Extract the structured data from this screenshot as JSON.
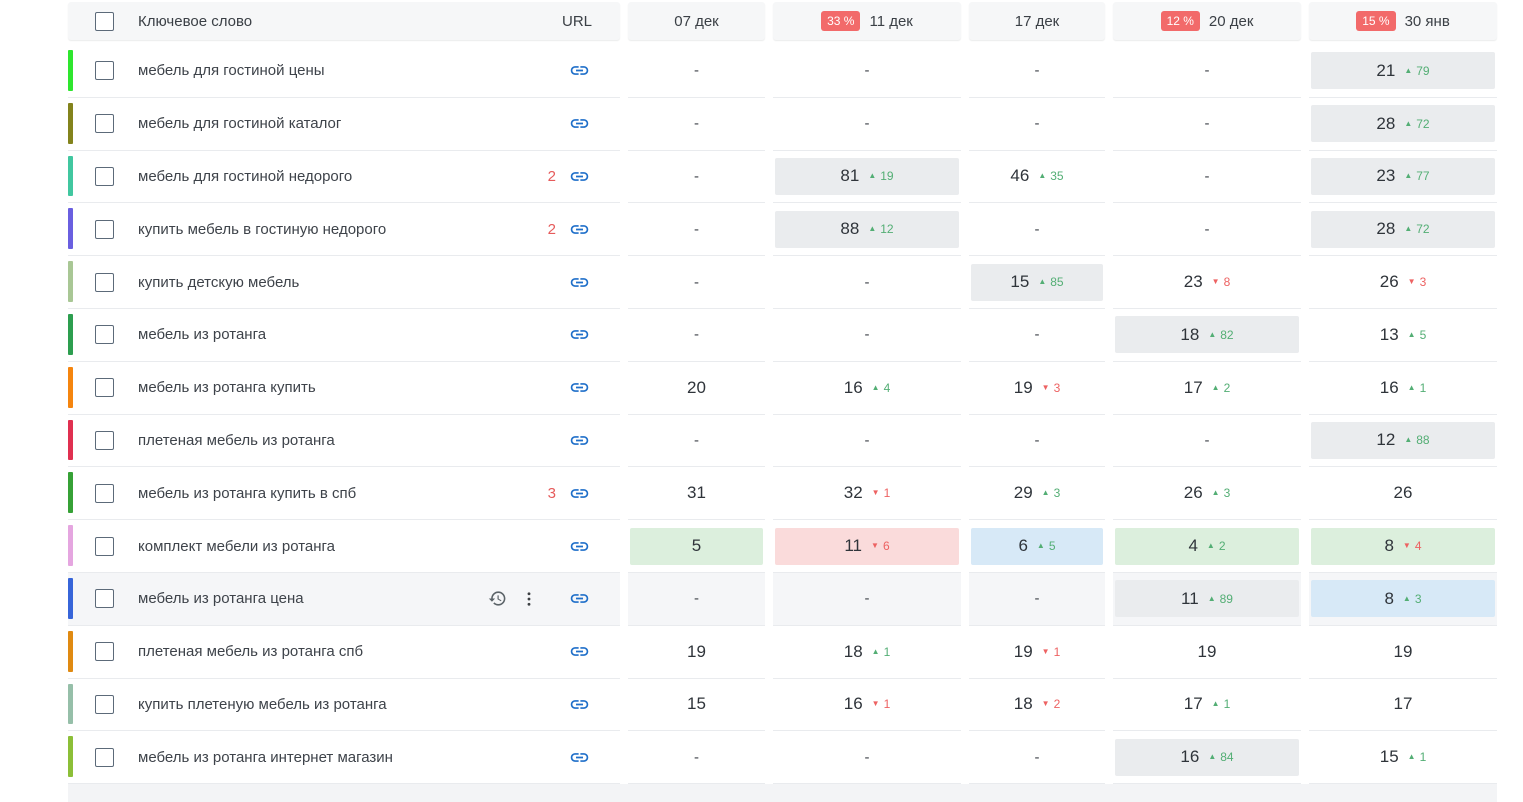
{
  "colors": {
    "badge_bg": "#f26a6a",
    "change_up": "#53ae74",
    "change_down": "#ed6262",
    "cell_gray": "#eaecee",
    "cell_green": "#dcefdd",
    "cell_red": "#fadbdb",
    "cell_blue": "#d7e9f7",
    "link_icon": "#1f6fc9",
    "highlight_row": "#f5f6f8"
  },
  "header": {
    "keyword_label": "Ключевое слово",
    "url_label": "URL",
    "columns": [
      {
        "label": "07 дек",
        "badge": ""
      },
      {
        "label": "11 дек",
        "badge": "33 %"
      },
      {
        "label": "17 дек",
        "badge": ""
      },
      {
        "label": "20 дек",
        "badge": "12 %"
      },
      {
        "label": "30 янв",
        "badge": "15 %"
      }
    ]
  },
  "table": {
    "rows": [
      {
        "keyword": "мебель для гостиной цены",
        "stripe": "#2ee62e",
        "count": "",
        "extra_icons": false,
        "highlighted": false,
        "cells": [
          {
            "value": "-"
          },
          {
            "value": "-"
          },
          {
            "value": "-"
          },
          {
            "value": "-"
          },
          {
            "value": "21",
            "dir": "up",
            "amount": "79",
            "bg": "gray"
          }
        ]
      },
      {
        "keyword": "мебель для гостиной каталог",
        "stripe": "#83831c",
        "count": "",
        "extra_icons": false,
        "highlighted": false,
        "cells": [
          {
            "value": "-"
          },
          {
            "value": "-"
          },
          {
            "value": "-"
          },
          {
            "value": "-"
          },
          {
            "value": "28",
            "dir": "up",
            "amount": "72",
            "bg": "gray"
          }
        ]
      },
      {
        "keyword": "мебель для гостиной недорого",
        "stripe": "#41c7a0",
        "count": "2",
        "extra_icons": false,
        "highlighted": false,
        "cells": [
          {
            "value": "-"
          },
          {
            "value": "81",
            "dir": "up",
            "amount": "19",
            "bg": "gray"
          },
          {
            "value": "46",
            "dir": "up",
            "amount": "35"
          },
          {
            "value": "-"
          },
          {
            "value": "23",
            "dir": "up",
            "amount": "77",
            "bg": "gray"
          }
        ]
      },
      {
        "keyword": "купить мебель в гостиную недорого",
        "stripe": "#6a5fe0",
        "count": "2",
        "extra_icons": false,
        "highlighted": false,
        "cells": [
          {
            "value": "-"
          },
          {
            "value": "88",
            "dir": "up",
            "amount": "12",
            "bg": "gray"
          },
          {
            "value": "-"
          },
          {
            "value": "-"
          },
          {
            "value": "28",
            "dir": "up",
            "amount": "72",
            "bg": "gray"
          }
        ]
      },
      {
        "keyword": "купить детскую мебель",
        "stripe": "#a9c795",
        "count": "",
        "extra_icons": false,
        "highlighted": false,
        "cells": [
          {
            "value": "-"
          },
          {
            "value": "-"
          },
          {
            "value": "15",
            "dir": "up",
            "amount": "85",
            "bg": "gray"
          },
          {
            "value": "23",
            "dir": "down",
            "amount": "8"
          },
          {
            "value": "26",
            "dir": "down",
            "amount": "3"
          }
        ]
      },
      {
        "keyword": "мебель из ротанга",
        "stripe": "#2d9e4f",
        "count": "",
        "extra_icons": false,
        "highlighted": false,
        "cells": [
          {
            "value": "-"
          },
          {
            "value": "-"
          },
          {
            "value": "-"
          },
          {
            "value": "18",
            "dir": "up",
            "amount": "82",
            "bg": "gray"
          },
          {
            "value": "13",
            "dir": "up",
            "amount": "5"
          }
        ]
      },
      {
        "keyword": "мебель из ротанга купить",
        "stripe": "#f5850f",
        "count": "",
        "extra_icons": false,
        "highlighted": false,
        "cells": [
          {
            "value": "20"
          },
          {
            "value": "16",
            "dir": "up",
            "amount": "4"
          },
          {
            "value": "19",
            "dir": "down",
            "amount": "3"
          },
          {
            "value": "17",
            "dir": "up",
            "amount": "2"
          },
          {
            "value": "16",
            "dir": "up",
            "amount": "1"
          }
        ]
      },
      {
        "keyword": "плетеная мебель из ротанга",
        "stripe": "#e03050",
        "count": "",
        "extra_icons": false,
        "highlighted": false,
        "cells": [
          {
            "value": "-"
          },
          {
            "value": "-"
          },
          {
            "value": "-"
          },
          {
            "value": "-"
          },
          {
            "value": "12",
            "dir": "up",
            "amount": "88",
            "bg": "gray"
          }
        ]
      },
      {
        "keyword": "мебель из ротанга купить в спб",
        "stripe": "#36a136",
        "count": "3",
        "extra_icons": false,
        "highlighted": false,
        "cells": [
          {
            "value": "31"
          },
          {
            "value": "32",
            "dir": "down",
            "amount": "1"
          },
          {
            "value": "29",
            "dir": "up",
            "amount": "3"
          },
          {
            "value": "26",
            "dir": "up",
            "amount": "3"
          },
          {
            "value": "26"
          }
        ]
      },
      {
        "keyword": "комплект мебели из ротанга",
        "stripe": "#e5a6e0",
        "count": "",
        "extra_icons": false,
        "highlighted": false,
        "cells": [
          {
            "value": "5",
            "bg": "green"
          },
          {
            "value": "11",
            "dir": "down",
            "amount": "6",
            "bg": "red"
          },
          {
            "value": "6",
            "dir": "up",
            "amount": "5",
            "bg": "blue"
          },
          {
            "value": "4",
            "dir": "up",
            "amount": "2",
            "bg": "green"
          },
          {
            "value": "8",
            "dir": "down",
            "amount": "4",
            "bg": "green"
          }
        ]
      },
      {
        "keyword": "мебель из ротанга цена",
        "stripe": "#3765d9",
        "count": "",
        "extra_icons": true,
        "highlighted": true,
        "cells": [
          {
            "value": "-"
          },
          {
            "value": "-"
          },
          {
            "value": "-"
          },
          {
            "value": "11",
            "dir": "up",
            "amount": "89",
            "bg": "gray"
          },
          {
            "value": "8",
            "dir": "up",
            "amount": "3",
            "bg": "blue"
          }
        ]
      },
      {
        "keyword": "плетеная мебель из ротанга спб",
        "stripe": "#e08a12",
        "count": "",
        "extra_icons": false,
        "highlighted": false,
        "cells": [
          {
            "value": "19"
          },
          {
            "value": "18",
            "dir": "up",
            "amount": "1"
          },
          {
            "value": "19",
            "dir": "down",
            "amount": "1"
          },
          {
            "value": "19"
          },
          {
            "value": "19"
          }
        ]
      },
      {
        "keyword": "купить плетеную мебель из ротанга",
        "stripe": "#96bfa9",
        "count": "",
        "extra_icons": false,
        "highlighted": false,
        "cells": [
          {
            "value": "15"
          },
          {
            "value": "16",
            "dir": "down",
            "amount": "1"
          },
          {
            "value": "18",
            "dir": "down",
            "amount": "2"
          },
          {
            "value": "17",
            "dir": "up",
            "amount": "1"
          },
          {
            "value": "17"
          }
        ]
      },
      {
        "keyword": "мебель из ротанга интернет магазин",
        "stripe": "#8cbf38",
        "count": "",
        "extra_icons": false,
        "highlighted": false,
        "cells": [
          {
            "value": "-"
          },
          {
            "value": "-"
          },
          {
            "value": "-"
          },
          {
            "value": "16",
            "dir": "up",
            "amount": "84",
            "bg": "gray"
          },
          {
            "value": "15",
            "dir": "up",
            "amount": "1"
          }
        ]
      }
    ]
  }
}
